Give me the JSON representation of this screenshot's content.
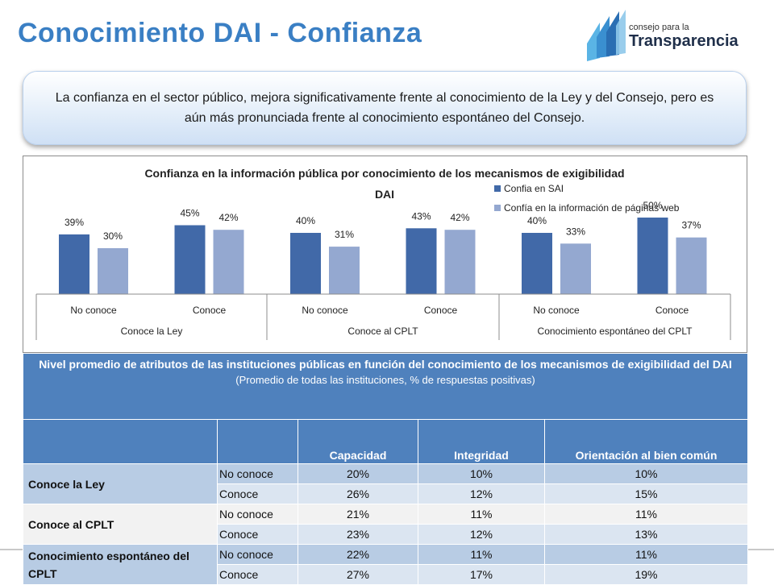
{
  "title": "Conocimiento DAI - Confianza",
  "logo": {
    "line1": "consejo para la",
    "line2": "Transparencia"
  },
  "callout": "La confianza en el sector público, mejora significativamente frente al conocimiento de la Ley y del Consejo, pero es aún más pronunciada frente al conocimiento espontáneo del Consejo.",
  "colors": {
    "series1": "#4169a8",
    "series2": "#94a8d0",
    "title": "#3a7fc4",
    "table_header": "#4f81bd"
  },
  "chart_data": {
    "type": "bar",
    "title": "Confianza en la información pública por conocimiento de los mecanismos de exigibilidad DAI",
    "title_line1": "Confianza en la información pública por conocimiento de los mecanismos de exigibilidad",
    "title_line2": "DAI",
    "categories": [
      "No conoce",
      "Conoce",
      "No conoce",
      "Conoce",
      "No conoce",
      "Conoce"
    ],
    "groups": [
      "Conoce la Ley",
      "Conoce al CPLT",
      "Conocimiento espontáneo del CPLT"
    ],
    "series": [
      {
        "name": "Confia en SAI",
        "values": [
          39,
          45,
          40,
          43,
          40,
          50
        ]
      },
      {
        "name": "Confía en la información de páginas web",
        "values": [
          30,
          42,
          31,
          42,
          33,
          37
        ]
      }
    ],
    "unit": "%",
    "legend": "top-right"
  },
  "table": {
    "caption": "Nivel promedio de atributos de las instituciones públicas en función del conocimiento de los mecanismos de exigibilidad del DAI",
    "caption_sub": "(Promedio de todas las instituciones, % de respuestas positivas)",
    "columns": [
      "Capacidad",
      "Integridad",
      "Orientación al bien común"
    ],
    "groups": [
      {
        "label": "Conoce la Ley",
        "rows": [
          {
            "label": "No conoce",
            "values": [
              "20%",
              "10%",
              "10%"
            ]
          },
          {
            "label": "Conoce",
            "values": [
              "26%",
              "12%",
              "15%"
            ]
          }
        ]
      },
      {
        "label": "Conoce al CPLT",
        "rows": [
          {
            "label": "No conoce",
            "values": [
              "21%",
              "11%",
              "11%"
            ]
          },
          {
            "label": "Conoce",
            "values": [
              "23%",
              "12%",
              "13%"
            ]
          }
        ]
      },
      {
        "label": "Conocimiento espontáneo del CPLT",
        "rows": [
          {
            "label": "No conoce",
            "values": [
              "22%",
              "11%",
              "11%"
            ]
          },
          {
            "label": "Conoce",
            "values": [
              "27%",
              "17%",
              "19%"
            ]
          }
        ]
      }
    ]
  }
}
